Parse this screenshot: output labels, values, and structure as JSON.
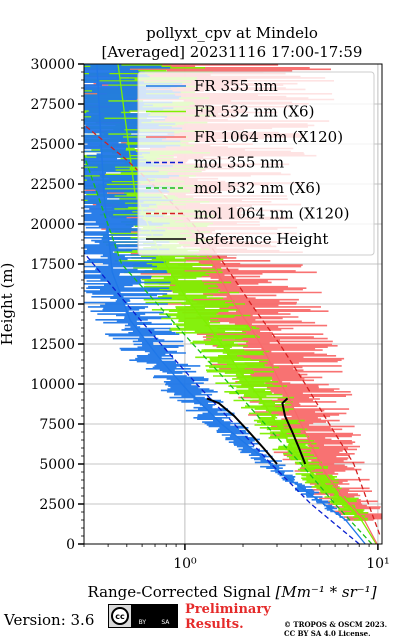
{
  "chart_data": {
    "type": "line",
    "title_line1": "pollyxt_cpv at Mindelo",
    "title_line2": "[Averaged] 20231116 17:00-17:59",
    "xlabel": "Range-Corrected Signal",
    "xlabel_unit": "[Mm⁻¹ * sr⁻¹]",
    "ylabel": "Height (m)",
    "xscale": "log",
    "xlim": [
      0.3,
      10.5
    ],
    "ylim": [
      0,
      30000
    ],
    "grid": true,
    "legend_position": "top-right",
    "x_tick_labels": [
      "10⁰",
      "10¹"
    ],
    "x_tick_values": [
      1,
      10
    ],
    "y_ticks": [
      0,
      2500,
      5000,
      7500,
      10000,
      12500,
      15000,
      17500,
      20000,
      22500,
      25000,
      27500,
      30000
    ],
    "series": [
      {
        "name": "FR 355 nm",
        "color": "#1f77e8",
        "style": "solid",
        "x": [
          8.6,
          6.8,
          4.6,
          3.1,
          2.2,
          1.55,
          1.05,
          0.75,
          0.52,
          0.42,
          0.38,
          0.35
        ],
        "y": [
          0,
          1500,
          3000,
          4500,
          6000,
          7500,
          9500,
          11500,
          14000,
          17000,
          22000,
          30000
        ]
      },
      {
        "name": "FR 532 nm (X6)",
        "color": "#7ef000",
        "style": "solid",
        "x": [
          9.8,
          8.2,
          6.2,
          4.5,
          3.6,
          3.0,
          2.5,
          2.0,
          1.65,
          1.35,
          1.0,
          0.75,
          0.55,
          0.45
        ],
        "y": [
          0,
          1500,
          3000,
          4500,
          6000,
          7500,
          9000,
          10500,
          12000,
          13500,
          15500,
          18000,
          22000,
          30000
        ]
      },
      {
        "name": "FR 1064 nm (X120)",
        "color": "#f86a6a",
        "style": "solid",
        "x": [
          9.9,
          8.5,
          6.5,
          5.3,
          4.6,
          4.0,
          3.5,
          3.0,
          2.6,
          2.2,
          1.8,
          1.4,
          1.0
        ],
        "y": [
          0,
          1500,
          3000,
          4500,
          6000,
          7500,
          9000,
          10500,
          12000,
          13500,
          15000,
          17500,
          20000
        ]
      },
      {
        "name": "mol 355 nm",
        "color": "#0a1fd0",
        "style": "dashed",
        "x": [
          8.0,
          4.5,
          2.8,
          1.8,
          1.15,
          0.75,
          0.5,
          0.3
        ],
        "y": [
          0,
          2500,
          5000,
          7500,
          10000,
          12500,
          15000,
          18200
        ]
      },
      {
        "name": "mol 532 nm (X6)",
        "color": "#18c018",
        "style": "dashed",
        "x": [
          9.3,
          6.0,
          4.0,
          2.6,
          1.7,
          1.1,
          0.72,
          0.47,
          0.3
        ],
        "y": [
          0,
          2500,
          5000,
          7500,
          10000,
          12500,
          15000,
          17500,
          24300
        ]
      },
      {
        "name": "mol 1064 nm (X120)",
        "color": "#d42020",
        "style": "dashed",
        "x": [
          10.2,
          7.5,
          5.6,
          4.2,
          3.1,
          2.2,
          1.6,
          1.1,
          0.75,
          0.5,
          0.3
        ],
        "y": [
          600,
          5000,
          7500,
          10000,
          12500,
          15000,
          17500,
          20000,
          22000,
          24000,
          26200
        ]
      },
      {
        "name": "Reference Height",
        "color": "#000000",
        "style": "solid",
        "segments": [
          {
            "x": [
              3.0,
              2.55,
              2.15,
              1.8,
              1.5,
              1.3
            ],
            "y": [
              5000,
              6000,
              7000,
              8000,
              8800,
              9100
            ]
          },
          {
            "x": [
              4.2,
              3.9,
              3.6,
              3.3,
              3.2,
              3.4
            ],
            "y": [
              5000,
              6000,
              7000,
              8000,
              8800,
              9100
            ]
          }
        ]
      }
    ]
  },
  "footer": {
    "version": "Version: 3.6",
    "cc_label": "cc",
    "cc_by": "BY",
    "cc_sa": "SA",
    "preliminary_line1": "Preliminary",
    "preliminary_line2": "Results.",
    "copyright_line1": "© TROPOS & OSCM 2023.",
    "copyright_line2": "CC BY SA 4.0 License."
  }
}
